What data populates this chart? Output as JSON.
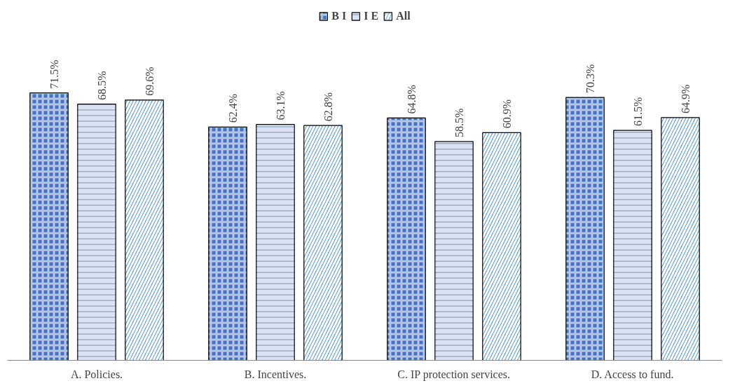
{
  "chart_data": {
    "type": "bar",
    "categories": [
      "A. Policies.",
      "B. Incentives.",
      "C. IP protection services.",
      "D. Access to fund."
    ],
    "series": [
      {
        "name": "B I",
        "color": "#4472c4",
        "values": [
          71.5,
          62.4,
          64.8,
          70.3
        ],
        "value_labels": [
          "71.5%",
          "62.4%",
          "64.8%",
          "70.3%"
        ]
      },
      {
        "name": "I E",
        "color": "#dae3f3",
        "values": [
          68.5,
          63.1,
          58.5,
          61.5
        ],
        "value_labels": [
          "68.5%",
          "63.1%",
          "58.5%",
          "61.5%"
        ]
      },
      {
        "name": "All",
        "color": "#5b9bd5",
        "values": [
          69.6,
          62.8,
          60.9,
          64.9
        ],
        "value_labels": [
          "69.6%",
          "62.8%",
          "60.9%",
          "64.9%"
        ]
      }
    ],
    "legend": "top",
    "grid": false
  }
}
